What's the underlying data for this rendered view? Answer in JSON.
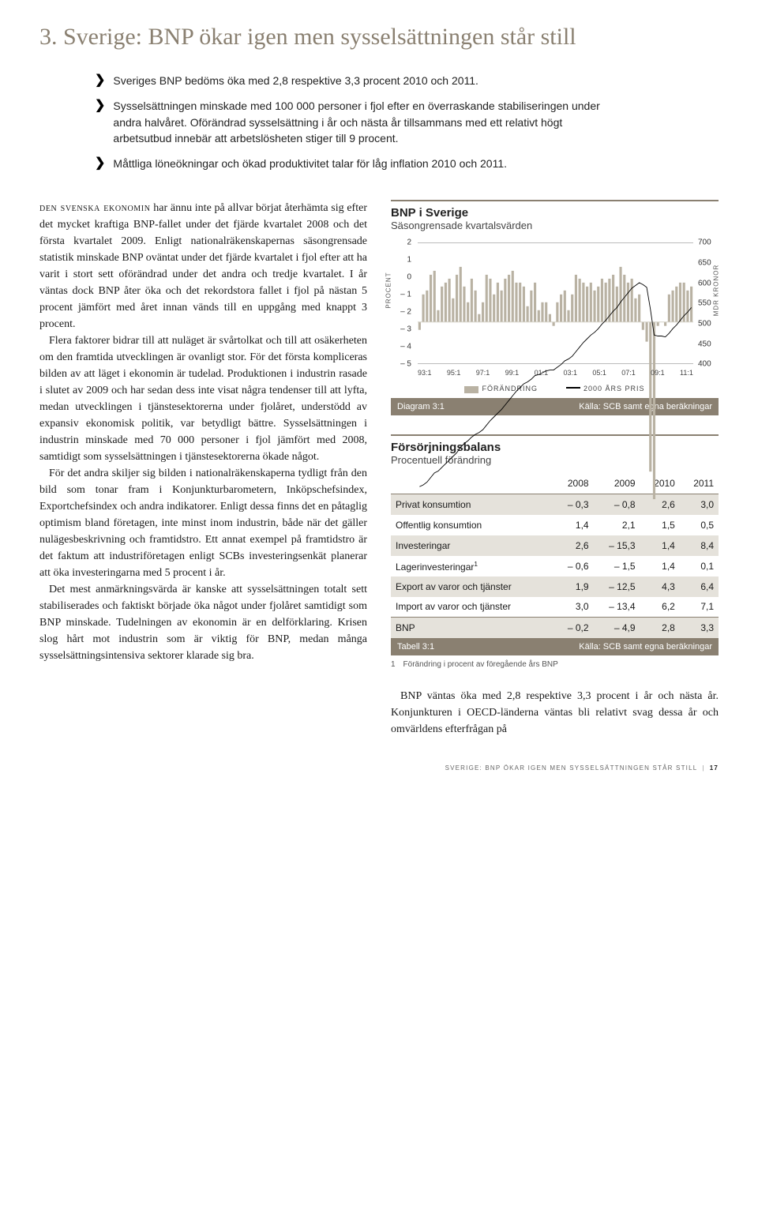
{
  "header": {
    "title": "3. Sverige: BNP ökar igen men sysselsättningen står still"
  },
  "bullets": [
    "Sveriges BNP bedöms öka med 2,8 respektive 3,3 procent 2010 och 2011.",
    "Sysselsättningen minskade med 100 000 personer i fjol efter en överraskande stabiliseringen under andra halvåret. Oförändrad sysselsättning i år och nästa år tillsammans med ett relativt högt arbetsutbud innebär att arbetslösheten stiger till 9 procent.",
    "Måttliga löneökningar och ökad produktivitet talar för låg inflation 2010 och 2011."
  ],
  "left_column": {
    "smallcaps_lead": "den svenska ekonomin",
    "paragraphs": [
      " har ännu inte på allvar börjat återhämta sig efter det mycket kraftiga BNP-fallet under det fjärde kvartalet 2008 och det första kvartalet 2009. Enligt nationalräkenskapernas säsongrensade statistik minskade BNP oväntat under det fjärde kvartalet i fjol efter att ha varit i stort sett oförändrad under det andra och tredje kvartalet. I år väntas dock BNP åter öka och det rekordstora fallet i fjol på nästan 5 procent jämfört med året innan vänds till en uppgång med knappt 3 procent.",
      "Flera faktorer bidrar till att nuläget är svårtolkat och till att osäkerheten om den framtida utvecklingen är ovanligt stor. För det första kompliceras bilden av att läget i ekonomin är tudelad. Produktionen i industrin rasade i slutet av 2009 och har sedan dess inte visat några tendenser till att lyfta, medan utvecklingen i tjänstesektorerna under fjolåret, understödd av expansiv ekonomisk politik, var betydligt bättre. Sysselsättningen i industrin minskade med 70 000 personer i fjol jämfört med 2008, samtidigt som sysselsättningen i tjänstesektorerna ökade något.",
      "För det andra skiljer sig bilden i nationalräkenskaperna tydligt från den bild som tonar fram i Konjunkturbarometern, Inköpschefsindex, Exportchefsindex och andra indikatorer. Enligt dessa finns det en påtaglig optimism bland företagen, inte minst inom industrin, både när det gäller nulägesbeskrivning och framtidstro. Ett annat exempel på framtidstro är det faktum att industriföretagen enligt SCBs investeringsenkät planerar att öka investeringarna med 5 procent i år.",
      "Det mest anmärkningsvärda är kanske att sysselsättningen totalt sett stabiliserades och faktiskt började öka något under fjolåret samtidigt som BNP minskade. Tudelningen av ekonomin är en delförklaring. Krisen slog hårt mot industrin som är viktig för BNP, medan många sysselsättningsintensiva sektorer klarade sig bra."
    ]
  },
  "chart": {
    "title": "BNP i Sverige",
    "subtitle": "Säsongrensade kvartalsvärden",
    "y_left": {
      "label": "PROCENT",
      "ticks": [
        2,
        1,
        0,
        -1,
        -2,
        -3,
        -4,
        -5
      ]
    },
    "y_right": {
      "label": "MDR KRONOR",
      "ticks": [
        700,
        650,
        600,
        550,
        500,
        450,
        400
      ]
    },
    "x_ticks": [
      "93:1",
      "95:1",
      "97:1",
      "99:1",
      "01:1",
      "03:1",
      "05:1",
      "07:1",
      "09:1",
      "11:1"
    ],
    "bars_percent": [
      -0.2,
      0.7,
      0.8,
      1.2,
      1.3,
      0.3,
      0.9,
      1.0,
      1.1,
      0.6,
      1.2,
      1.4,
      0.9,
      0.5,
      1.1,
      0.8,
      0.2,
      0.5,
      1.2,
      1.1,
      0.7,
      1.0,
      0.8,
      1.1,
      1.2,
      1.3,
      1.0,
      1.0,
      0.9,
      0.4,
      0.8,
      1.0,
      0.3,
      0.5,
      0.5,
      0.2,
      -0.1,
      0.5,
      0.7,
      0.8,
      0.3,
      0.7,
      1.2,
      1.1,
      1.0,
      0.9,
      1.0,
      0.8,
      0.9,
      1.1,
      1.0,
      1.1,
      1.2,
      0.9,
      1.4,
      1.2,
      1.0,
      1.1,
      0.6,
      0.7,
      -0.2,
      -0.5,
      -3.8,
      -4.5,
      -0.1,
      0.0,
      -0.1,
      0.7,
      0.8,
      0.9,
      1.0,
      1.0,
      0.8,
      0.9
    ],
    "line_values_mdr": [
      435,
      437,
      440,
      445,
      450,
      452,
      456,
      460,
      464,
      468,
      472,
      478,
      482,
      485,
      489,
      492,
      494,
      497,
      502,
      507,
      511,
      515,
      519,
      524,
      529,
      534,
      539,
      543,
      547,
      549,
      552,
      556,
      557,
      559,
      561,
      562,
      562,
      565,
      568,
      572,
      574,
      577,
      582,
      587,
      592,
      596,
      600,
      603,
      607,
      612,
      616,
      621,
      626,
      630,
      636,
      641,
      646,
      651,
      654,
      657,
      655,
      652,
      628,
      600,
      599,
      599,
      598,
      602,
      607,
      611,
      616,
      621,
      625,
      630
    ],
    "legend": {
      "bars": "FÖRÄNDRING",
      "line": "2000 ÅRS PRIS"
    },
    "footer_left": "Diagram 3:1",
    "footer_right": "Källa: SCB samt egna beräkningar",
    "colors": {
      "bar": "#b9b2a3",
      "line": "#000000",
      "grid": "#bbbbbb",
      "accent": "#8a8071",
      "bg": "#ffffff"
    }
  },
  "table": {
    "title": "Försörjningsbalans",
    "subtitle": "Procentuell förändring",
    "columns": [
      "",
      "2008",
      "2009",
      "2010",
      "2011"
    ],
    "rows": [
      {
        "label": "Privat konsumtion",
        "vals": [
          "– 0,3",
          "– 0,8",
          "2,6",
          "3,0"
        ],
        "shade": true
      },
      {
        "label": "Offentlig konsumtion",
        "vals": [
          "1,4",
          "2,1",
          "1,5",
          "0,5"
        ],
        "shade": false
      },
      {
        "label": "Investeringar",
        "vals": [
          "2,6",
          "– 15,3",
          "1,4",
          "8,4"
        ],
        "shade": true
      },
      {
        "label": "Lagerinvesteringar¹",
        "vals": [
          "– 0,6",
          "– 1,5",
          "1,4",
          "0,1"
        ],
        "shade": false
      },
      {
        "label": "Export av varor och tjänster",
        "vals": [
          "1,9",
          "– 12,5",
          "4,3",
          "6,4"
        ],
        "shade": true
      },
      {
        "label": "Import av varor och tjänster",
        "vals": [
          "3,0",
          "– 13,4",
          "6,2",
          "7,1"
        ],
        "shade": false
      },
      {
        "label": "BNP",
        "vals": [
          "– 0,2",
          "– 4,9",
          "2,8",
          "3,3"
        ],
        "shade": true,
        "bnp": true
      }
    ],
    "footer_left": "Tabell 3:1",
    "footer_right": "Källa: SCB samt egna beräkningar",
    "note": "1 Förändring i procent av föregående års BNP"
  },
  "tail_paragraph": "BNP väntas öka med 2,8 respektive 3,3 procent i år och nästa år. Konjunkturen i OECD-länderna väntas bli relativt svag dessa år och omvärldens efterfrågan på",
  "page_footer": {
    "section": "SVERIGE: BNP ÖKAR IGEN MEN SYSSELSÄTTNINGEN STÅR STILL",
    "page": "17"
  }
}
